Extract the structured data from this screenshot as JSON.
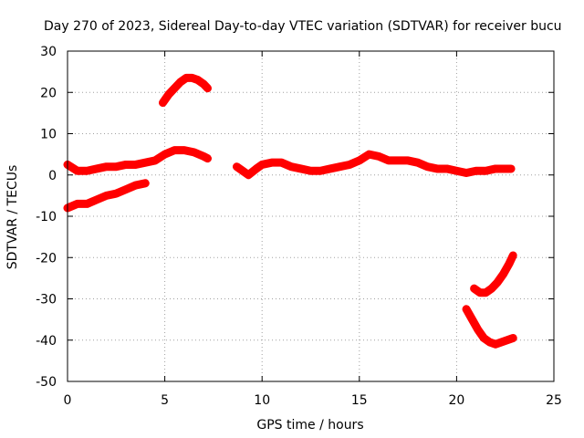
{
  "chart_data": {
    "type": "scatter",
    "title": "Day 270 of 2023, Sidereal Day-to-day VTEC variation (SDTVAR) for receiver bucu",
    "xlabel": "GPS time / hours",
    "ylabel": "SDTVAR / TECUs",
    "xlim": [
      0,
      25
    ],
    "ylim": [
      -50,
      30
    ],
    "xticks": [
      0,
      5,
      10,
      15,
      20,
      25
    ],
    "yticks": [
      30,
      20,
      10,
      0,
      -10,
      -20,
      -30,
      -40,
      -50
    ],
    "grid": true,
    "series_color": "#ff0000",
    "series": [
      {
        "name": "track-main-1",
        "x": [
          0.0,
          0.5,
          1.0,
          1.5,
          2.0,
          2.5,
          3.0,
          3.5,
          4.0,
          4.5,
          5.0,
          5.5,
          6.0,
          6.5,
          7.0,
          7.2
        ],
        "y": [
          2.5,
          1.0,
          1.0,
          1.5,
          2.0,
          2.0,
          2.5,
          2.5,
          3.0,
          3.5,
          5.0,
          6.0,
          6.0,
          5.5,
          4.5,
          4.0
        ]
      },
      {
        "name": "track-low",
        "x": [
          0.0,
          0.5,
          1.0,
          1.5,
          2.0,
          2.5,
          3.0,
          3.5,
          4.0
        ],
        "y": [
          -8.0,
          -7.0,
          -7.0,
          -6.0,
          -5.0,
          -4.5,
          -3.5,
          -2.5,
          -2.0
        ]
      },
      {
        "name": "track-arc-top",
        "x": [
          4.9,
          5.2,
          5.5,
          5.8,
          6.1,
          6.4,
          6.7,
          7.0,
          7.2
        ],
        "y": [
          17.5,
          19.5,
          21.0,
          22.5,
          23.5,
          23.5,
          23.0,
          22.0,
          21.0
        ]
      },
      {
        "name": "track-main-2",
        "x": [
          8.7,
          9.0,
          9.3,
          9.7,
          10.0,
          10.5,
          11.0,
          11.5,
          12.0,
          12.5,
          13.0,
          13.5,
          14.0,
          14.5,
          15.0,
          15.5,
          16.0,
          16.5,
          17.0,
          17.5,
          18.0,
          18.5,
          19.0,
          19.5,
          20.0,
          20.5,
          21.0,
          21.5,
          22.0,
          22.5,
          22.8
        ],
        "y": [
          2.0,
          1.0,
          0.0,
          1.5,
          2.5,
          3.0,
          3.0,
          2.0,
          1.5,
          1.0,
          1.0,
          1.5,
          2.0,
          2.5,
          3.5,
          5.0,
          4.5,
          3.5,
          3.5,
          3.5,
          3.0,
          2.0,
          1.5,
          1.5,
          1.0,
          0.5,
          1.0,
          1.0,
          1.5,
          1.5,
          1.5
        ]
      },
      {
        "name": "track-arc-lower-right-1",
        "x": [
          20.9,
          21.2,
          21.5,
          21.8,
          22.1,
          22.4,
          22.7,
          22.9
        ],
        "y": [
          -27.5,
          -28.5,
          -28.5,
          -27.5,
          -26.0,
          -24.0,
          -21.5,
          -19.5
        ]
      },
      {
        "name": "track-arc-lower-right-2",
        "x": [
          20.5,
          20.8,
          21.1,
          21.4,
          21.7,
          22.0,
          22.3,
          22.6,
          22.9
        ],
        "y": [
          -32.5,
          -35.0,
          -37.5,
          -39.5,
          -40.5,
          -41.0,
          -40.5,
          -40.0,
          -39.5
        ]
      }
    ]
  }
}
